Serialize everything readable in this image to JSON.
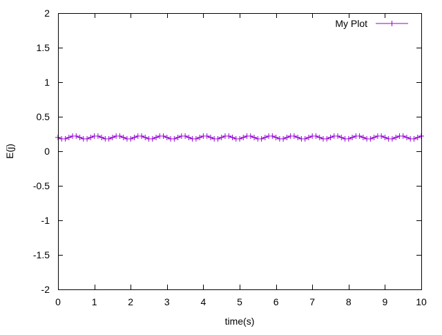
{
  "chart_data": {
    "type": "line",
    "title": "",
    "xlabel": "time(s)",
    "ylabel": "E(j)",
    "xlim": [
      0,
      10
    ],
    "ylim": [
      -2,
      2
    ],
    "x_ticks": [
      0,
      1,
      2,
      3,
      4,
      5,
      6,
      7,
      8,
      9,
      10
    ],
    "x_tick_labels": [
      "0",
      "1",
      "2",
      "3",
      "4",
      "5",
      "6",
      "7",
      "8",
      "9",
      "10"
    ],
    "y_ticks": [
      -2,
      -1.5,
      -1,
      -0.5,
      0,
      0.5,
      1,
      1.5,
      2
    ],
    "y_tick_labels": [
      "-2",
      "-1.5",
      "-1",
      "-0.5",
      "0",
      "0.5",
      "1",
      "1.5",
      "2"
    ],
    "grid": false,
    "legend_position": "top-right",
    "series": [
      {
        "name": "My Plot",
        "color": "#9400d3",
        "marker": "plus",
        "x": [
          0,
          0.1,
          0.2,
          0.3,
          0.4,
          0.5,
          0.6,
          0.7,
          0.8,
          0.9,
          1.0,
          1.1,
          1.2,
          1.3,
          1.4,
          1.5,
          1.6,
          1.7,
          1.8,
          1.9,
          2.0,
          2.1,
          2.2,
          2.3,
          2.4,
          2.5,
          2.6,
          2.7,
          2.8,
          2.9,
          3.0,
          3.1,
          3.2,
          3.3,
          3.4,
          3.5,
          3.6,
          3.7,
          3.8,
          3.9,
          4.0,
          4.1,
          4.2,
          4.3,
          4.4,
          4.5,
          4.6,
          4.7,
          4.8,
          4.9,
          5.0,
          5.1,
          5.2,
          5.3,
          5.4,
          5.5,
          5.6,
          5.7,
          5.8,
          5.9,
          6.0,
          6.1,
          6.2,
          6.3,
          6.4,
          6.5,
          6.6,
          6.7,
          6.8,
          6.9,
          7.0,
          7.1,
          7.2,
          7.3,
          7.4,
          7.5,
          7.6,
          7.7,
          7.8,
          7.9,
          8.0,
          8.1,
          8.2,
          8.3,
          8.4,
          8.5,
          8.6,
          8.7,
          8.8,
          8.9,
          9.0,
          9.1,
          9.2,
          9.3,
          9.4,
          9.5,
          9.6,
          9.7,
          9.8,
          9.9,
          10.0
        ],
        "y": [
          0.2,
          0.18,
          0.18,
          0.2,
          0.22,
          0.22,
          0.2,
          0.18,
          0.18,
          0.2,
          0.22,
          0.22,
          0.2,
          0.18,
          0.18,
          0.2,
          0.22,
          0.22,
          0.2,
          0.18,
          0.18,
          0.2,
          0.22,
          0.22,
          0.2,
          0.18,
          0.18,
          0.2,
          0.22,
          0.22,
          0.2,
          0.18,
          0.18,
          0.2,
          0.22,
          0.22,
          0.2,
          0.18,
          0.18,
          0.2,
          0.22,
          0.22,
          0.2,
          0.18,
          0.18,
          0.2,
          0.22,
          0.22,
          0.2,
          0.18,
          0.18,
          0.2,
          0.22,
          0.22,
          0.2,
          0.18,
          0.18,
          0.2,
          0.22,
          0.22,
          0.2,
          0.18,
          0.18,
          0.2,
          0.22,
          0.22,
          0.2,
          0.18,
          0.18,
          0.2,
          0.22,
          0.22,
          0.2,
          0.18,
          0.18,
          0.2,
          0.22,
          0.22,
          0.2,
          0.18,
          0.18,
          0.2,
          0.22,
          0.22,
          0.2,
          0.18,
          0.18,
          0.2,
          0.22,
          0.22,
          0.2,
          0.18,
          0.18,
          0.2,
          0.22,
          0.22,
          0.2,
          0.18,
          0.18,
          0.2,
          0.22
        ]
      }
    ]
  }
}
